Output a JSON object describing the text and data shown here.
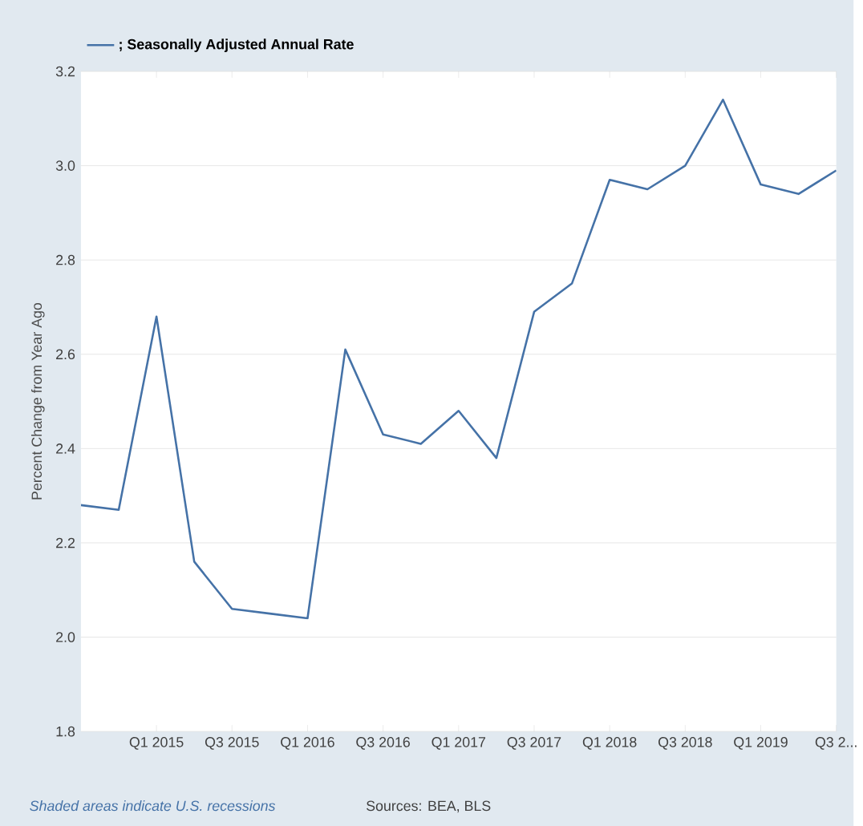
{
  "chart_data": {
    "type": "line",
    "ylabel": "Percent Change from Year Ago",
    "categories": [
      null,
      null,
      "Q1 2015",
      null,
      "Q3 2015",
      null,
      "Q1 2016",
      null,
      "Q3 2016",
      null,
      "Q1 2017",
      null,
      "Q3 2017",
      null,
      "Q1 2018",
      null,
      "Q3 2018",
      null,
      "Q1 2019",
      null,
      "Q3 2..."
    ],
    "series": [
      {
        "name": "; Seasonally Adjusted Annual Rate",
        "color": "#4572a7",
        "values": [
          2.28,
          2.27,
          2.68,
          2.16,
          2.06,
          2.05,
          2.04,
          2.61,
          2.43,
          2.41,
          2.48,
          2.38,
          2.69,
          2.75,
          2.97,
          2.95,
          3.0,
          3.14,
          2.96,
          2.94,
          2.99
        ]
      }
    ],
    "ylim": [
      1.8,
      3.2
    ],
    "yticks": [
      {
        "value": 1.8,
        "label": "1.8"
      },
      {
        "value": 2.0,
        "label": "2.0"
      },
      {
        "value": 2.2,
        "label": "2.2"
      },
      {
        "value": 2.4,
        "label": "2.4"
      },
      {
        "value": 2.6,
        "label": "2.6"
      },
      {
        "value": 2.8,
        "label": "2.8"
      },
      {
        "value": 3.0,
        "label": "3.0"
      },
      {
        "value": 3.2,
        "label": "3.2"
      }
    ],
    "grid": "y",
    "legend": "top left",
    "annotations": [
      "Shaded areas indicate U.S. recessions",
      "Sources: BEA, BLS"
    ]
  }
}
